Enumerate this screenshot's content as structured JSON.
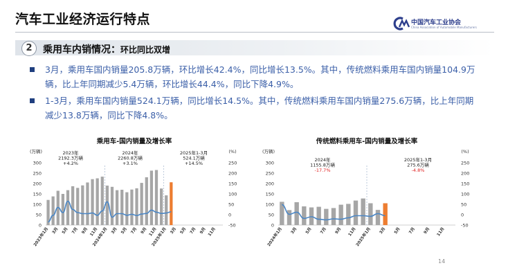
{
  "slide": {
    "title": "汽车工业经济运行特点",
    "logo_text": "中国汽车工业协会",
    "logo_sub": "China Association of Automobile Manufacturers",
    "section_number": "2",
    "section_title": "乘用车内销情况：",
    "section_subtitle": "环比同比双增",
    "bullets": [
      "3月，乘用车国内销量205.8万辆，环比增长42.4%，同比增长13.5%。其中，传统燃料乘用车国内销量104.9万辆，比上年同期减少5.4万辆，环比增长44.4%，同比下降4.9%。",
      "1-3月，乘用车国内销量524.1万辆，同比增长14.5%。其中，传统燃料乘用车国内销量275.6万辆，比上年同期减少13.8万辆，同比下降4.8%。"
    ],
    "page_number": "14",
    "colors": {
      "bar": "#a6a6a6",
      "bar_latest": "#ed7d31",
      "line": "#4a86c5",
      "accent_red": "#e02020",
      "text_blue": "#3b5fa8"
    }
  },
  "chart_data": [
    {
      "type": "bar",
      "title": "乘用车-国内销量及增长率",
      "yunit_left": "(万辆)",
      "yunit_right": "(%)",
      "ylim": [
        0,
        300
      ],
      "ylim_right": [
        -50,
        250
      ],
      "yticks_left": [
        "0",
        "50",
        "100",
        "150",
        "200",
        "250",
        "300"
      ],
      "yticks_right": [
        "-50",
        "0",
        "50",
        "100",
        "150",
        "200",
        "250"
      ],
      "x_ticklabels": [
        "2023年1月",
        "3月",
        "5月",
        "7月",
        "9月",
        "11月",
        "2024年1月",
        "3月",
        "5月",
        "7月",
        "9月",
        "11月",
        "2025年1月",
        "3月",
        "5月",
        "7月",
        "9月",
        "11月"
      ],
      "bars": [
        121,
        138,
        165,
        150,
        168,
        187,
        179,
        191,
        205,
        221,
        225,
        233,
        190,
        184,
        168,
        170,
        158,
        171,
        177,
        203,
        230,
        262,
        265,
        176,
        143,
        206
      ],
      "latest_index": 25,
      "line_values": [
        -35,
        -3,
        35,
        10,
        65,
        25,
        10,
        5,
        5,
        8,
        -3,
        18,
        62,
        -12,
        5,
        5,
        -3,
        2,
        -4,
        3,
        6,
        22,
        12,
        6,
        8,
        14
      ],
      "annotations": [
        {
          "lines": [
            "2023年",
            "2192.3万辆",
            "+4.2%"
          ],
          "color": "#1a1a1a"
        },
        {
          "lines": [
            "2024年",
            "2260.8万辆",
            "+3.1%"
          ],
          "color": "#1a1a1a"
        },
        {
          "lines": [
            "2025年1-3月",
            "524.1万辆",
            "+14.5%"
          ],
          "color": "#1a1a1a"
        }
      ]
    },
    {
      "type": "bar",
      "title": "传统燃料乘用车-国内销量及增长率",
      "yunit_left": "(万辆)",
      "yunit_right": "(%)",
      "ylim": [
        0,
        300
      ],
      "ylim_right": [
        -50,
        250
      ],
      "yticks_left": [
        "0",
        "50",
        "100",
        "150",
        "200",
        "250",
        "300"
      ],
      "yticks_right": [
        "-50",
        "0",
        "50",
        "100",
        "150",
        "200",
        "250"
      ],
      "x_ticklabels": [
        "2024年1月",
        "3月",
        "5月",
        "7月",
        "9月",
        "11月",
        "2025年1月",
        "3月",
        "5月",
        "7月",
        "9月",
        "11月"
      ],
      "bars": [
        112,
        72,
        110,
        90,
        85,
        88,
        78,
        82,
        98,
        102,
        118,
        128,
        105,
        73,
        105
      ],
      "latest_index": 14,
      "line_values": [
        48,
        2,
        12,
        -18,
        -10,
        -22,
        -25,
        -20,
        -22,
        -15,
        -5,
        -5,
        -8,
        5,
        -5
      ],
      "annotations": [
        {
          "lines": [
            "2024年",
            "1155.8万辆",
            "-17.7%"
          ],
          "color_last": "#e02020"
        },
        {
          "lines": [
            "2025年1-3月",
            "275.6万辆",
            "-4.8%"
          ],
          "color_last": "#e02020"
        }
      ]
    }
  ]
}
